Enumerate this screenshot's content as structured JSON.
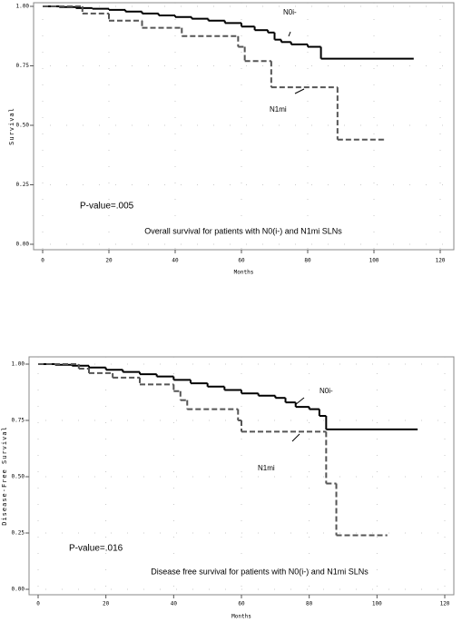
{
  "chart_data": [
    {
      "type": "step",
      "title": "Overall survival for patients with N0(i-) and N1mi SLNs",
      "x_label": "Months",
      "y_label": "Survival",
      "annotation": "P-value=.005",
      "xlim": [
        0,
        120
      ],
      "xticks": [
        0,
        20,
        40,
        60,
        80,
        100,
        120
      ],
      "ylim": [
        0,
        1
      ],
      "yticks": [
        {
          "value": 0,
          "label": "0.00"
        },
        {
          "value": 0.25,
          "label": "0.25"
        },
        {
          "value": 0.5,
          "label": "0.50"
        },
        {
          "value": 0.75,
          "label": "0.75"
        },
        {
          "value": 1,
          "label": "1.00"
        }
      ],
      "grid": true,
      "series": [
        {
          "name": "N0i-",
          "color": "#000000",
          "dash": false,
          "x": [
            0,
            5,
            10,
            15,
            20,
            25,
            30,
            35,
            40,
            45,
            50,
            55,
            60,
            64,
            68,
            70,
            72,
            75,
            80,
            84,
            112
          ],
          "values": [
            1,
            0.997,
            0.993,
            0.99,
            0.985,
            0.978,
            0.97,
            0.962,
            0.955,
            0.948,
            0.94,
            0.93,
            0.915,
            0.9,
            0.89,
            0.86,
            0.85,
            0.84,
            0.83,
            0.78,
            0.78
          ]
        },
        {
          "name": "N1mi",
          "color": "#555555",
          "dash": true,
          "x": [
            0,
            12,
            20,
            30,
            42,
            59,
            61,
            69,
            89,
            103
          ],
          "values": [
            1,
            0.97,
            0.94,
            0.91,
            0.875,
            0.83,
            0.77,
            0.66,
            0.44,
            0.44
          ]
        }
      ]
    },
    {
      "type": "step",
      "title": "Disease free survival for patients with N0(i-) and N1mi SLNs",
      "x_label": "Months",
      "y_label": "Disease-Free Survival",
      "annotation": "P-value=.016",
      "xlim": [
        0,
        120
      ],
      "xticks": [
        0,
        20,
        40,
        60,
        80,
        100,
        120
      ],
      "ylim": [
        0,
        1
      ],
      "yticks": [
        {
          "value": 0,
          "label": "0.00"
        },
        {
          "value": 0.25,
          "label": "0.25"
        },
        {
          "value": 0.5,
          "label": "0.50"
        },
        {
          "value": 0.75,
          "label": "0.75"
        },
        {
          "value": 1,
          "label": "1.00"
        }
      ],
      "grid": true,
      "series": [
        {
          "name": "N0i-",
          "color": "#000000",
          "dash": false,
          "x": [
            0,
            5,
            10,
            15,
            20,
            25,
            30,
            35,
            40,
            45,
            50,
            55,
            60,
            65,
            70,
            73,
            76,
            80,
            83,
            85,
            112
          ],
          "values": [
            1,
            0.997,
            0.993,
            0.985,
            0.975,
            0.965,
            0.955,
            0.945,
            0.93,
            0.915,
            0.9,
            0.885,
            0.87,
            0.86,
            0.85,
            0.83,
            0.81,
            0.8,
            0.77,
            0.71,
            0.71
          ]
        },
        {
          "name": "N1mi",
          "color": "#555555",
          "dash": true,
          "x": [
            0,
            12,
            15,
            22,
            30,
            40,
            42,
            44,
            59,
            60,
            85,
            88,
            103
          ],
          "values": [
            1,
            0.98,
            0.96,
            0.94,
            0.91,
            0.88,
            0.84,
            0.8,
            0.75,
            0.7,
            0.47,
            0.24,
            0.24
          ]
        }
      ]
    }
  ]
}
